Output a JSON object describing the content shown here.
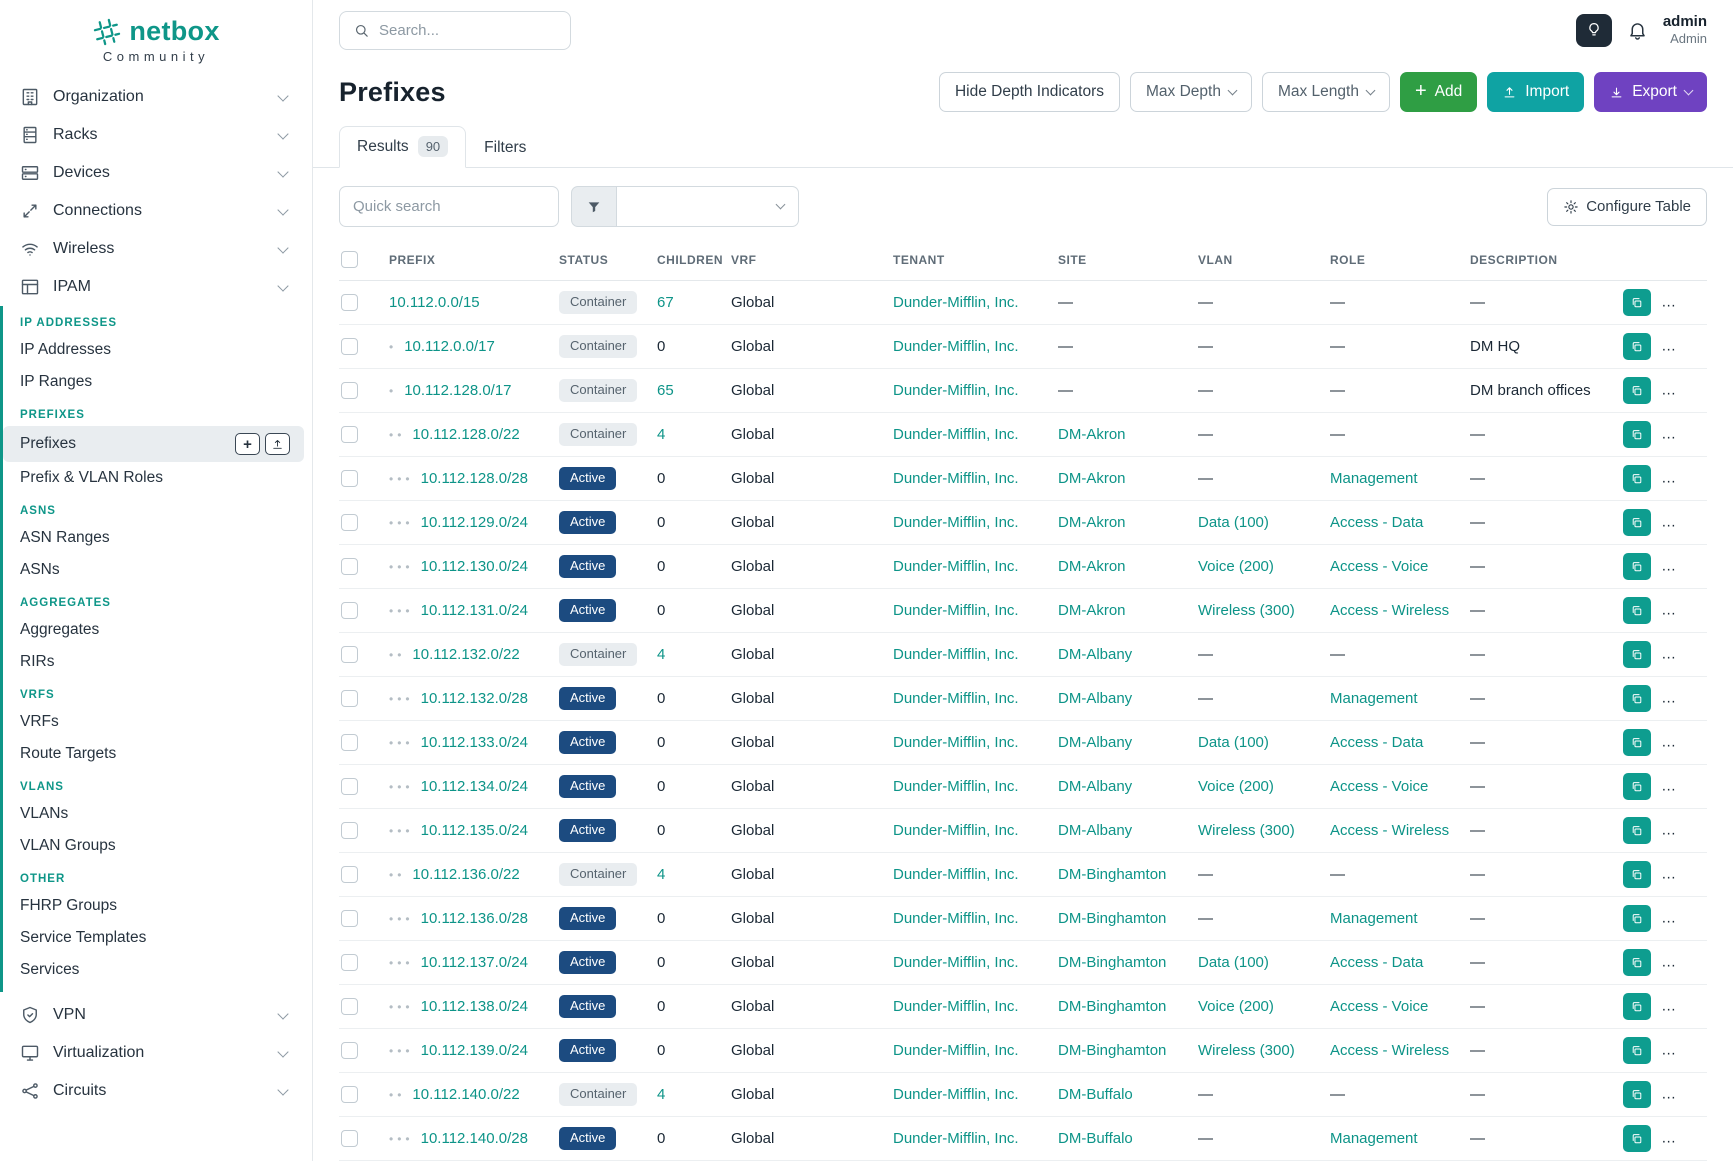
{
  "brand": {
    "name": "netbox",
    "subtitle": "Community"
  },
  "topbar": {
    "search_placeholder": "Search...",
    "user": {
      "name": "admin",
      "role": "Admin"
    }
  },
  "sidebar": {
    "top_items": [
      {
        "label": "Organization",
        "icon": "building-icon"
      },
      {
        "label": "Racks",
        "icon": "rack-icon"
      },
      {
        "label": "Devices",
        "icon": "devices-icon"
      },
      {
        "label": "Connections",
        "icon": "connections-icon"
      },
      {
        "label": "Wireless",
        "icon": "wireless-icon"
      },
      {
        "label": "IPAM",
        "icon": "ipam-icon"
      }
    ],
    "ipam_groups": [
      {
        "header": "IP ADDRESSES",
        "items": [
          {
            "label": "IP Addresses"
          },
          {
            "label": "IP Ranges"
          }
        ]
      },
      {
        "header": "PREFIXES",
        "items": [
          {
            "label": "Prefixes",
            "active": true,
            "buttons": [
              "add",
              "import"
            ]
          },
          {
            "label": "Prefix & VLAN Roles"
          }
        ]
      },
      {
        "header": "ASNS",
        "items": [
          {
            "label": "ASN Ranges"
          },
          {
            "label": "ASNs"
          }
        ]
      },
      {
        "header": "AGGREGATES",
        "items": [
          {
            "label": "Aggregates"
          },
          {
            "label": "RIRs"
          }
        ]
      },
      {
        "header": "VRFS",
        "items": [
          {
            "label": "VRFs"
          },
          {
            "label": "Route Targets"
          }
        ]
      },
      {
        "header": "VLANS",
        "items": [
          {
            "label": "VLANs"
          },
          {
            "label": "VLAN Groups"
          }
        ]
      },
      {
        "header": "OTHER",
        "items": [
          {
            "label": "FHRP Groups"
          },
          {
            "label": "Service Templates"
          },
          {
            "label": "Services"
          }
        ]
      }
    ],
    "bottom_items": [
      {
        "label": "VPN",
        "icon": "vpn-icon"
      },
      {
        "label": "Virtualization",
        "icon": "virtualization-icon"
      },
      {
        "label": "Circuits",
        "icon": "circuits-icon"
      }
    ]
  },
  "page": {
    "title": "Prefixes",
    "actions": {
      "hide_depth": "Hide Depth Indicators",
      "max_depth": "Max Depth",
      "max_length": "Max Length",
      "add": "Add",
      "import": "Import",
      "export": "Export"
    },
    "tabs": [
      {
        "label": "Results",
        "badge": "90"
      },
      {
        "label": "Filters"
      }
    ],
    "controls": {
      "quick_search_placeholder": "Quick search",
      "configure_table": "Configure Table"
    }
  },
  "table": {
    "columns": [
      "PREFIX",
      "STATUS",
      "CHILDREN",
      "VRF",
      "TENANT",
      "SITE",
      "VLAN",
      "ROLE",
      "DESCRIPTION"
    ],
    "rows": [
      {
        "depth": 0,
        "prefix": "10.112.0.0/15",
        "status": "Container",
        "children": "67",
        "vrf": "Global",
        "tenant": "Dunder-Mifflin, Inc.",
        "site": "—",
        "vlan": "—",
        "role": "—",
        "description": "—"
      },
      {
        "depth": 1,
        "prefix": "10.112.0.0/17",
        "status": "Container",
        "children": "0",
        "vrf": "Global",
        "tenant": "Dunder-Mifflin, Inc.",
        "site": "—",
        "vlan": "—",
        "role": "—",
        "description": "DM HQ"
      },
      {
        "depth": 1,
        "prefix": "10.112.128.0/17",
        "status": "Container",
        "children": "65",
        "vrf": "Global",
        "tenant": "Dunder-Mifflin, Inc.",
        "site": "—",
        "vlan": "—",
        "role": "—",
        "description": "DM branch offices"
      },
      {
        "depth": 2,
        "prefix": "10.112.128.0/22",
        "status": "Container",
        "children": "4",
        "vrf": "Global",
        "tenant": "Dunder-Mifflin, Inc.",
        "site": "DM-Akron",
        "vlan": "—",
        "role": "—",
        "description": "—"
      },
      {
        "depth": 3,
        "prefix": "10.112.128.0/28",
        "status": "Active",
        "children": "0",
        "vrf": "Global",
        "tenant": "Dunder-Mifflin, Inc.",
        "site": "DM-Akron",
        "vlan": "—",
        "role": "Management",
        "description": "—"
      },
      {
        "depth": 3,
        "prefix": "10.112.129.0/24",
        "status": "Active",
        "children": "0",
        "vrf": "Global",
        "tenant": "Dunder-Mifflin, Inc.",
        "site": "DM-Akron",
        "vlan": "Data (100)",
        "role": "Access - Data",
        "description": "—"
      },
      {
        "depth": 3,
        "prefix": "10.112.130.0/24",
        "status": "Active",
        "children": "0",
        "vrf": "Global",
        "tenant": "Dunder-Mifflin, Inc.",
        "site": "DM-Akron",
        "vlan": "Voice (200)",
        "role": "Access - Voice",
        "description": "—"
      },
      {
        "depth": 3,
        "prefix": "10.112.131.0/24",
        "status": "Active",
        "children": "0",
        "vrf": "Global",
        "tenant": "Dunder-Mifflin, Inc.",
        "site": "DM-Akron",
        "vlan": "Wireless (300)",
        "role": "Access - Wireless",
        "description": "—"
      },
      {
        "depth": 2,
        "prefix": "10.112.132.0/22",
        "status": "Container",
        "children": "4",
        "vrf": "Global",
        "tenant": "Dunder-Mifflin, Inc.",
        "site": "DM-Albany",
        "vlan": "—",
        "role": "—",
        "description": "—"
      },
      {
        "depth": 3,
        "prefix": "10.112.132.0/28",
        "status": "Active",
        "children": "0",
        "vrf": "Global",
        "tenant": "Dunder-Mifflin, Inc.",
        "site": "DM-Albany",
        "vlan": "—",
        "role": "Management",
        "description": "—"
      },
      {
        "depth": 3,
        "prefix": "10.112.133.0/24",
        "status": "Active",
        "children": "0",
        "vrf": "Global",
        "tenant": "Dunder-Mifflin, Inc.",
        "site": "DM-Albany",
        "vlan": "Data (100)",
        "role": "Access - Data",
        "description": "—"
      },
      {
        "depth": 3,
        "prefix": "10.112.134.0/24",
        "status": "Active",
        "children": "0",
        "vrf": "Global",
        "tenant": "Dunder-Mifflin, Inc.",
        "site": "DM-Albany",
        "vlan": "Voice (200)",
        "role": "Access - Voice",
        "description": "—"
      },
      {
        "depth": 3,
        "prefix": "10.112.135.0/24",
        "status": "Active",
        "children": "0",
        "vrf": "Global",
        "tenant": "Dunder-Mifflin, Inc.",
        "site": "DM-Albany",
        "vlan": "Wireless (300)",
        "role": "Access - Wireless",
        "description": "—"
      },
      {
        "depth": 2,
        "prefix": "10.112.136.0/22",
        "status": "Container",
        "children": "4",
        "vrf": "Global",
        "tenant": "Dunder-Mifflin, Inc.",
        "site": "DM-Binghamton",
        "vlan": "—",
        "role": "—",
        "description": "—"
      },
      {
        "depth": 3,
        "prefix": "10.112.136.0/28",
        "status": "Active",
        "children": "0",
        "vrf": "Global",
        "tenant": "Dunder-Mifflin, Inc.",
        "site": "DM-Binghamton",
        "vlan": "—",
        "role": "Management",
        "description": "—"
      },
      {
        "depth": 3,
        "prefix": "10.112.137.0/24",
        "status": "Active",
        "children": "0",
        "vrf": "Global",
        "tenant": "Dunder-Mifflin, Inc.",
        "site": "DM-Binghamton",
        "vlan": "Data (100)",
        "role": "Access - Data",
        "description": "—"
      },
      {
        "depth": 3,
        "prefix": "10.112.138.0/24",
        "status": "Active",
        "children": "0",
        "vrf": "Global",
        "tenant": "Dunder-Mifflin, Inc.",
        "site": "DM-Binghamton",
        "vlan": "Voice (200)",
        "role": "Access - Voice",
        "description": "—"
      },
      {
        "depth": 3,
        "prefix": "10.112.139.0/24",
        "status": "Active",
        "children": "0",
        "vrf": "Global",
        "tenant": "Dunder-Mifflin, Inc.",
        "site": "DM-Binghamton",
        "vlan": "Wireless (300)",
        "role": "Access - Wireless",
        "description": "—"
      },
      {
        "depth": 2,
        "prefix": "10.112.140.0/22",
        "status": "Container",
        "children": "4",
        "vrf": "Global",
        "tenant": "Dunder-Mifflin, Inc.",
        "site": "DM-Buffalo",
        "vlan": "—",
        "role": "—",
        "description": "—"
      },
      {
        "depth": 3,
        "prefix": "10.112.140.0/28",
        "status": "Active",
        "children": "0",
        "vrf": "Global",
        "tenant": "Dunder-Mifflin, Inc.",
        "site": "DM-Buffalo",
        "vlan": "—",
        "role": "Management",
        "description": "—"
      }
    ]
  },
  "icons": {
    "topbar": [
      "search-icon",
      "lightbulb-icon",
      "bell-icon"
    ],
    "controls": [
      "funnel-icon",
      "gear-icon",
      "chevron-down-icon"
    ],
    "row_actions": [
      "copy-icon",
      "pencil-icon",
      "chevron-down-icon"
    ]
  },
  "colors": {
    "brand_teal": "#0e9688",
    "link_teal": "#0d9488",
    "active_badge_blue": "#1c4b80",
    "container_badge_bg": "#e9edf0",
    "add_green": "#2f9e44",
    "import_teal": "#0fa3a3",
    "export_purple": "#6f42c1",
    "edit_orange": "#ee8625",
    "copy_teal": "#0e9d8f"
  }
}
